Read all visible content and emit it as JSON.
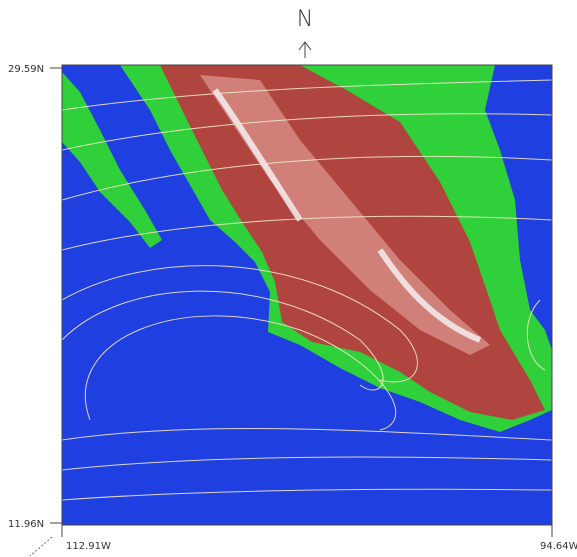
{
  "compass": {
    "label": "N"
  },
  "latitude_labels": {
    "top": "29.59N",
    "bottom": "11.96N"
  },
  "longitude_labels": {
    "left": "112.91W",
    "right": "94.64W"
  }
}
